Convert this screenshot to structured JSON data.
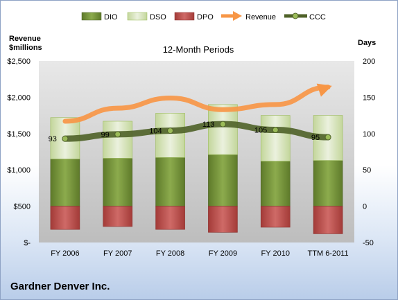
{
  "company": "Gardner Denver Inc.",
  "chart_data": {
    "type": "bar",
    "title": "12-Month Periods",
    "categories": [
      "FY 2006",
      "FY 2007",
      "FY 2008",
      "FY 2009",
      "FY 2010",
      "TTM 6-2011"
    ],
    "left_axis": {
      "label_line1": "Revenue",
      "label_line2": "$millions",
      "range": [
        0,
        2500
      ],
      "ticks": [
        0,
        500,
        1000,
        1500,
        2000,
        2500
      ],
      "tick_labels": [
        "$-",
        "$500",
        "$1,000",
        "$1,500",
        "$2,000",
        "$2,500"
      ]
    },
    "right_axis": {
      "label": "Days",
      "range": [
        -50,
        200
      ],
      "ticks": [
        -50,
        0,
        50,
        100,
        150,
        200
      ],
      "tick_labels": [
        "-50",
        "0",
        "50",
        "100",
        "150",
        "200"
      ]
    },
    "series": [
      {
        "name": "DIO",
        "kind": "stacked-bar",
        "axis": "right",
        "color": "#77933c",
        "values": [
          65,
          66,
          67,
          71,
          62,
          63
        ]
      },
      {
        "name": "DSO",
        "kind": "stacked-bar",
        "axis": "right",
        "color": "#d7e4bd",
        "values": [
          57,
          51,
          61,
          69,
          63,
          62
        ]
      },
      {
        "name": "DPO",
        "kind": "negative-bar",
        "axis": "right",
        "color": "#c0504d",
        "values": [
          -32,
          -28,
          -32,
          -36,
          -29,
          -38
        ]
      },
      {
        "name": "Revenue",
        "kind": "arrow-line",
        "axis": "left",
        "color": "#f79646",
        "values": [
          1670,
          1850,
          1990,
          1830,
          1900,
          2140
        ]
      },
      {
        "name": "CCC",
        "kind": "line",
        "axis": "right",
        "color": "#4f6228",
        "values": [
          93,
          99,
          104,
          113,
          105,
          95
        ],
        "labels": [
          "93",
          "99",
          "104",
          "113",
          "105",
          "95"
        ]
      }
    ],
    "grid": false,
    "legend": "top"
  }
}
